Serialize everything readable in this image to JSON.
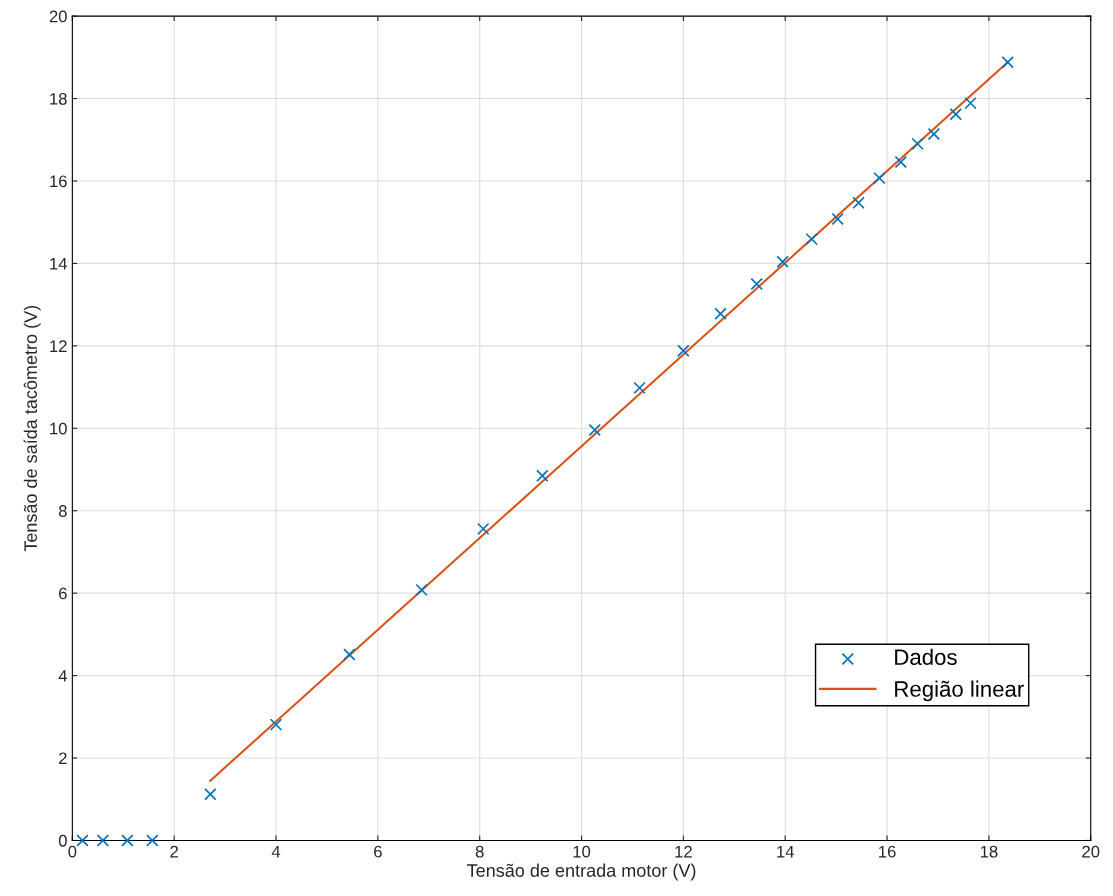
{
  "chart_data": {
    "type": "scatter",
    "xlabel": "Tensão de entrada motor (V)",
    "ylabel": "Tensão de saída tacômetro (V)",
    "xlim": [
      0,
      20
    ],
    "ylim": [
      0,
      20
    ],
    "xticks": [
      0,
      2,
      4,
      6,
      8,
      10,
      12,
      14,
      16,
      18,
      20
    ],
    "yticks": [
      0,
      2,
      4,
      6,
      8,
      10,
      12,
      14,
      16,
      18,
      20
    ],
    "grid": true,
    "legend": "lower right",
    "series": [
      {
        "name": "Dados",
        "marker": "cross",
        "color": "#0072bd",
        "x": [
          0.2,
          0.6,
          1.08,
          1.57,
          2.71,
          4.0,
          5.44,
          6.86,
          8.07,
          9.23,
          10.26,
          11.14,
          12.0,
          12.73,
          13.44,
          13.95,
          14.52,
          15.03,
          15.44,
          15.85,
          16.27,
          16.6,
          16.92,
          17.35,
          17.64,
          18.37
        ],
        "values": [
          0,
          0,
          0,
          0,
          1.12,
          2.81,
          4.51,
          6.08,
          7.56,
          8.85,
          9.96,
          10.98,
          11.88,
          12.78,
          13.5,
          14.04,
          14.59,
          15.08,
          15.47,
          16.07,
          16.46,
          16.9,
          17.14,
          17.62,
          17.89,
          18.88
        ]
      },
      {
        "name": "Região linear",
        "type": "line",
        "line_style": "solid",
        "color": "#d95319",
        "x": [
          2.71,
          18.37
        ],
        "values": [
          1.45,
          18.88
        ]
      }
    ]
  }
}
